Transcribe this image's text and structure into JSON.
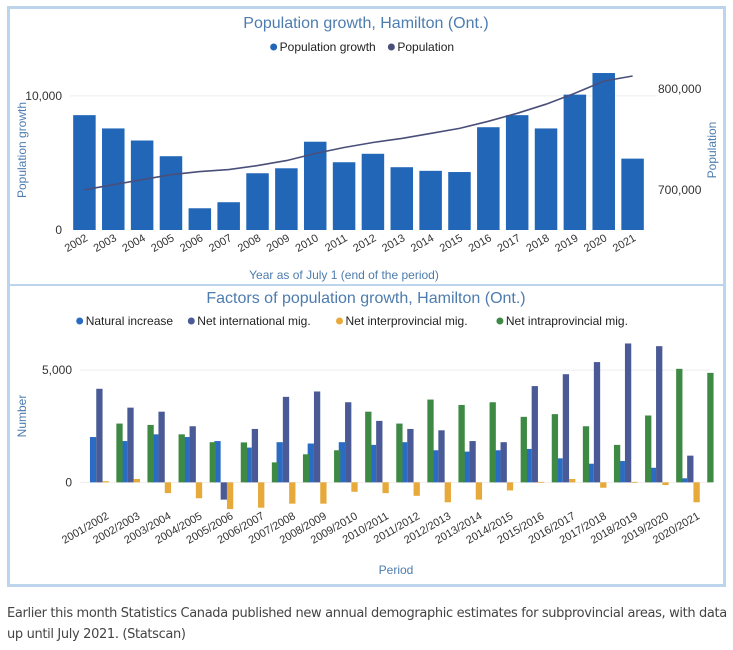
{
  "chart_data": [
    {
      "type": "bar",
      "title": "Population growth, Hamilton (Ont.)",
      "legend": [
        "Population growth",
        "Population"
      ],
      "legend_position": "top",
      "xlabel": "Year as of July 1 (end of the period)",
      "ylabel": "Population growth",
      "y2label": "Population",
      "categories": [
        "2002",
        "2003",
        "2004",
        "2005",
        "2006",
        "2007",
        "2008",
        "2009",
        "2010",
        "2011",
        "2012",
        "2013",
        "2014",
        "2015",
        "2016",
        "2017",
        "2018",
        "2019",
        "2020",
        "2021"
      ],
      "series": [
        {
          "name": "Population growth",
          "type": "bar",
          "axis": "left",
          "color": "#2266b8",
          "values": [
            8560,
            7570,
            6670,
            5500,
            1620,
            2070,
            4230,
            4600,
            6580,
            5050,
            5680,
            4680,
            4410,
            4320,
            7660,
            8560,
            7570,
            10090,
            11700,
            5320
          ]
        },
        {
          "name": "Population",
          "type": "line",
          "axis": "right",
          "color": "#4a4f7a",
          "values": [
            700000,
            705000,
            710000,
            715000,
            718000,
            720000,
            724000,
            729000,
            736000,
            742000,
            747000,
            751000,
            756000,
            761000,
            768000,
            776000,
            785000,
            796000,
            808000,
            813000
          ]
        }
      ],
      "ylim": [
        0,
        12000
      ],
      "yticks": [
        {
          "value": 0,
          "label": "0"
        },
        {
          "value": 10000,
          "label": "10,000"
        }
      ],
      "y2lim": [
        660000,
        820000
      ],
      "y2ticks": [
        {
          "value": 700000,
          "label": "700,000"
        },
        {
          "value": 800000,
          "label": "800,000"
        }
      ],
      "grid": true
    },
    {
      "type": "bar",
      "title": "Factors of population growth, Hamilton (Ont.)",
      "legend": [
        "Natural increase",
        "Net international mig.",
        "Net interprovincial mig.",
        "Net intraprovincial mig."
      ],
      "legend_position": "top",
      "xlabel": "Period",
      "ylabel": "Number",
      "categories": [
        "2001/2002",
        "2002/2003",
        "2003/2004",
        "2004/2005",
        "2005/2006",
        "2006/2007",
        "2007/2008",
        "2008/2009",
        "2009/2010",
        "2010/2011",
        "2011/2012",
        "2012/2013",
        "2013/2014",
        "2014/2015",
        "2015/2016",
        "2016/2017",
        "2017/2018",
        "2018/2019",
        "2019/2020",
        "2020/2021"
      ],
      "series": [
        {
          "name": "Natural increase",
          "color": "#2a6cc4",
          "values": [
            2020,
            1840,
            2140,
            2020,
            1840,
            1550,
            1790,
            1730,
            1790,
            1670,
            1790,
            1430,
            1370,
            1430,
            1490,
            1070,
            830,
            950,
            650,
            180
          ]
        },
        {
          "name": "Net international mig.",
          "color": "#4a5a96",
          "values": [
            4170,
            3330,
            3150,
            2500,
            -770,
            2380,
            3810,
            4050,
            3570,
            2740,
            2380,
            2320,
            1840,
            1790,
            4290,
            4820,
            5360,
            6190,
            6070,
            1190
          ]
        },
        {
          "name": "Net interprovincial mig.",
          "color": "#e6a93a",
          "values": [
            50,
            150,
            -480,
            -710,
            -1190,
            -1130,
            -950,
            -950,
            -420,
            -480,
            -600,
            -890,
            -770,
            -360,
            20,
            150,
            -240,
            20,
            -120,
            -890
          ]
        },
        {
          "name": "Net intraprovincial mig.",
          "color": "#3e8a44",
          "values": [
            2620,
            2560,
            2140,
            1790,
            1780,
            890,
            1250,
            1430,
            3150,
            2620,
            3690,
            3450,
            3570,
            2920,
            3040,
            2500,
            1670,
            2980,
            5060,
            4880
          ]
        }
      ],
      "ylim": [
        -1500,
        6300
      ],
      "yticks": [
        {
          "value": 0,
          "label": "0"
        },
        {
          "value": 5000,
          "label": "5,000"
        }
      ],
      "grid": true
    }
  ],
  "colors": {
    "title": "#4d7cae",
    "axis_label": "#4d7cae",
    "tick_label": "#333333",
    "frame_border": "#bcd5ec"
  },
  "caption": "Earlier this month Statistics Canada published new annual demographic estimates for subprovincial areas, with data up until July 2021. (Statscan)"
}
